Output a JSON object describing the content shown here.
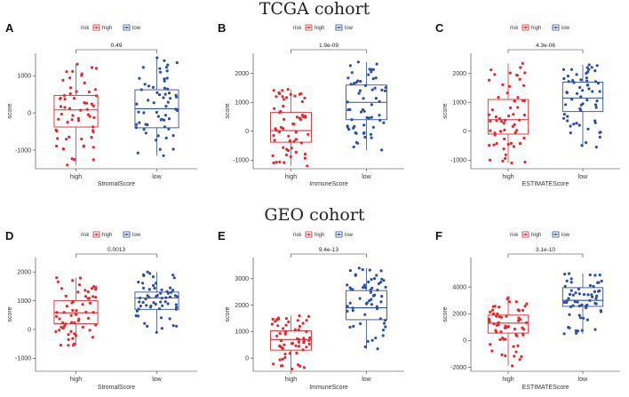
{
  "titles": {
    "top": "TCGA cohort",
    "bottom": "GEO cohort"
  },
  "colors": {
    "high": "#e8262b",
    "low": "#2b4fa8"
  },
  "legend": {
    "title": "risk",
    "high": "high",
    "low": "low"
  },
  "chart_data": [
    {
      "panel": "A",
      "type": "boxplot",
      "cohort": "TCGA cohort",
      "xlabel": "StromalScore",
      "ylabel": "score",
      "categories": [
        "high",
        "low"
      ],
      "ylim": [
        -1500,
        1600
      ],
      "yticks": [
        -1000,
        0,
        1000
      ],
      "ytick_labels": [
        "-1000",
        "0",
        "1000"
      ],
      "pvalue": "0.49",
      "boxes": [
        {
          "group": "high",
          "min": -1400,
          "q1": -380,
          "median": 80,
          "q3": 470,
          "max": 1310
        },
        {
          "group": "low",
          "min": -1150,
          "q1": -400,
          "median": 110,
          "q3": 620,
          "max": 1480
        }
      ]
    },
    {
      "panel": "B",
      "type": "boxplot",
      "cohort": "TCGA cohort",
      "xlabel": "ImmuneScore",
      "ylabel": "score",
      "categories": [
        "high",
        "low"
      ],
      "ylim": [
        -1300,
        2700
      ],
      "yticks": [
        -1000,
        0,
        1000,
        2000
      ],
      "ytick_labels": [
        "-1000",
        "0",
        "1000",
        "2000"
      ],
      "pvalue": "1.9e-09",
      "boxes": [
        {
          "group": "high",
          "min": -1200,
          "q1": -380,
          "median": 20,
          "q3": 650,
          "max": 1450
        },
        {
          "group": "low",
          "min": -650,
          "q1": 400,
          "median": 1000,
          "q3": 1600,
          "max": 2400
        }
      ]
    },
    {
      "panel": "C",
      "type": "boxplot",
      "cohort": "TCGA cohort",
      "xlabel": "ESTIMATEScore",
      "ylabel": "score",
      "categories": [
        "high",
        "low"
      ],
      "ylim": [
        -1300,
        2700
      ],
      "yticks": [
        -1000,
        0,
        1000,
        2000
      ],
      "ytick_labels": [
        "-1000",
        "0",
        "1000",
        "2000"
      ],
      "pvalue": "4.3e-06",
      "boxes": [
        {
          "group": "high",
          "min": -1100,
          "q1": -100,
          "median": 400,
          "q3": 1100,
          "max": 2350
        },
        {
          "group": "low",
          "min": -550,
          "q1": 680,
          "median": 1150,
          "q3": 1700,
          "max": 2300
        }
      ]
    },
    {
      "panel": "D",
      "type": "boxplot",
      "cohort": "GEO cohort",
      "xlabel": "StromalScore",
      "ylabel": "score",
      "categories": [
        "high",
        "low"
      ],
      "ylim": [
        -1450,
        2500
      ],
      "yticks": [
        -1000,
        0,
        1000,
        2000
      ],
      "ytick_labels": [
        "-1000",
        "0",
        "1000",
        "2000"
      ],
      "pvalue": "0.0013",
      "boxes": [
        {
          "group": "high",
          "min": -550,
          "q1": 200,
          "median": 580,
          "q3": 1000,
          "max": 1800
        },
        {
          "group": "low",
          "min": -100,
          "q1": 700,
          "median": 1100,
          "q3": 1300,
          "max": 2000
        }
      ]
    },
    {
      "panel": "E",
      "type": "boxplot",
      "cohort": "GEO cohort",
      "xlabel": "ImmuneScore",
      "ylabel": "score",
      "categories": [
        "high",
        "low"
      ],
      "ylim": [
        -500,
        3800
      ],
      "yticks": [
        0,
        1000,
        2000,
        3000
      ],
      "ytick_labels": [
        "0",
        "1000",
        "2000",
        "3000"
      ],
      "pvalue": "9.4e-13",
      "boxes": [
        {
          "group": "high",
          "min": -420,
          "q1": 300,
          "median": 700,
          "q3": 1030,
          "max": 1600
        },
        {
          "group": "low",
          "min": 350,
          "q1": 1450,
          "median": 1900,
          "q3": 2550,
          "max": 3400
        }
      ]
    },
    {
      "panel": "F",
      "type": "boxplot",
      "cohort": "GEO cohort",
      "xlabel": "ESTIMATEScore",
      "ylabel": "score",
      "categories": [
        "high",
        "low"
      ],
      "ylim": [
        -2300,
        6200
      ],
      "yticks": [
        -2000,
        0,
        2000,
        4000
      ],
      "ytick_labels": [
        "-2000",
        "0",
        "2000",
        "4000"
      ],
      "pvalue": "3.1e-10",
      "boxes": [
        {
          "group": "high",
          "min": -1900,
          "q1": 550,
          "median": 1300,
          "q3": 1900,
          "max": 3200
        },
        {
          "group": "low",
          "min": 500,
          "q1": 2550,
          "median": 3000,
          "q3": 3950,
          "max": 5000
        }
      ]
    }
  ]
}
